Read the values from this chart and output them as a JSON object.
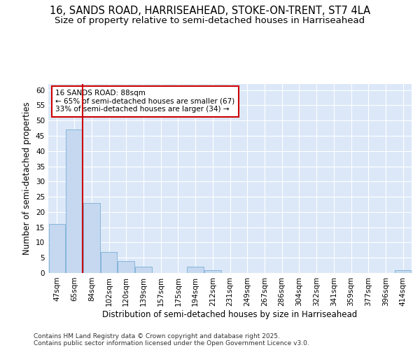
{
  "title_line1": "16, SANDS ROAD, HARRISEAHEAD, STOKE-ON-TRENT, ST7 4LA",
  "title_line2": "Size of property relative to semi-detached houses in Harriseahead",
  "xlabel": "Distribution of semi-detached houses by size in Harriseahead",
  "ylabel": "Number of semi-detached properties",
  "categories": [
    "47sqm",
    "65sqm",
    "84sqm",
    "102sqm",
    "120sqm",
    "139sqm",
    "157sqm",
    "175sqm",
    "194sqm",
    "212sqm",
    "231sqm",
    "249sqm",
    "267sqm",
    "286sqm",
    "304sqm",
    "322sqm",
    "341sqm",
    "359sqm",
    "377sqm",
    "396sqm",
    "414sqm"
  ],
  "values": [
    16,
    47,
    23,
    7,
    4,
    2,
    0,
    0,
    2,
    1,
    0,
    0,
    0,
    0,
    0,
    0,
    0,
    0,
    0,
    0,
    1
  ],
  "bar_color": "#c5d8f0",
  "bar_edge_color": "#7aaed6",
  "red_line_x": 2,
  "red_line_color": "#cc0000",
  "annotation_text": "16 SANDS ROAD: 88sqm\n← 65% of semi-detached houses are smaller (67)\n33% of semi-detached houses are larger (34) →",
  "annotation_box_facecolor": "#ffffff",
  "annotation_box_edgecolor": "#cc0000",
  "ylim": [
    0,
    62
  ],
  "yticks": [
    0,
    5,
    10,
    15,
    20,
    25,
    30,
    35,
    40,
    45,
    50,
    55,
    60
  ],
  "plot_bgcolor": "#dce8f8",
  "fig_bgcolor": "#ffffff",
  "grid_color": "#ffffff",
  "footer_text": "Contains HM Land Registry data © Crown copyright and database right 2025.\nContains public sector information licensed under the Open Government Licence v3.0.",
  "title_fontsize": 10.5,
  "subtitle_fontsize": 9.5,
  "axis_label_fontsize": 8.5,
  "tick_fontsize": 7.5,
  "annotation_fontsize": 7.5,
  "footer_fontsize": 6.5
}
